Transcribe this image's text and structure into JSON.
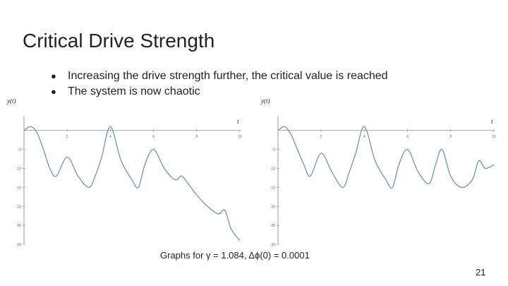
{
  "slide": {
    "title": "Critical Drive Strength",
    "bullets": [
      "Increasing the drive strength further, the critical value is reached",
      "The system is now chaotic"
    ],
    "caption": "Graphs for γ = 1.084,   Δϕ(0) = 0.0001",
    "page_number": "21",
    "line_color": "#6f95b5"
  },
  "chart_data": [
    {
      "type": "line",
      "ylabel": "y(t)",
      "xlabel": "t",
      "xlim": [
        0,
        10
      ],
      "ylim": [
        -30,
        2
      ],
      "x_ticks": [
        "2",
        "4",
        "6",
        "8",
        "10"
      ],
      "y_ticks": [
        "-5",
        "-10",
        "-15",
        "-20",
        "-25",
        "-30"
      ],
      "x": [
        0,
        0.3,
        0.6,
        0.9,
        1.2,
        1.5,
        2,
        2.5,
        3,
        3.3,
        3.6,
        4,
        4.5,
        5,
        5.3,
        5.6,
        6,
        6.5,
        7,
        7.3,
        7.6,
        8,
        8.5,
        9,
        9.3,
        9.6,
        10
      ],
      "values": [
        0,
        1,
        -0.5,
        -5,
        -10,
        -12,
        -7,
        -12,
        -15,
        -12,
        -7,
        1,
        -8,
        -13,
        -15,
        -9,
        -5,
        -10,
        -13,
        -12,
        -14,
        -17,
        -20,
        -22,
        -21,
        -26,
        -29
      ]
    },
    {
      "type": "line",
      "ylabel": "y(t)",
      "xlabel": "t",
      "xlim": [
        0,
        10
      ],
      "ylim": [
        -30,
        2
      ],
      "x_ticks": [
        "2",
        "4",
        "6",
        "8",
        "10"
      ],
      "y_ticks": [
        "-5",
        "-10",
        "-15",
        "-20",
        "-25",
        "-30"
      ],
      "x": [
        0,
        0.3,
        0.6,
        0.9,
        1.2,
        1.5,
        2,
        2.5,
        3,
        3.3,
        3.6,
        4,
        4.5,
        5,
        5.3,
        5.6,
        6,
        6.5,
        7,
        7.3,
        7.6,
        8,
        8.5,
        9,
        9.3,
        9.6,
        10
      ],
      "values": [
        0,
        1,
        -1,
        -5,
        -9,
        -12,
        -6,
        -11,
        -15,
        -11,
        -6,
        1,
        -8,
        -13,
        -15,
        -9,
        -5,
        -11,
        -14,
        -9,
        -5,
        -12,
        -15,
        -13,
        -8,
        -10,
        -9
      ]
    }
  ]
}
